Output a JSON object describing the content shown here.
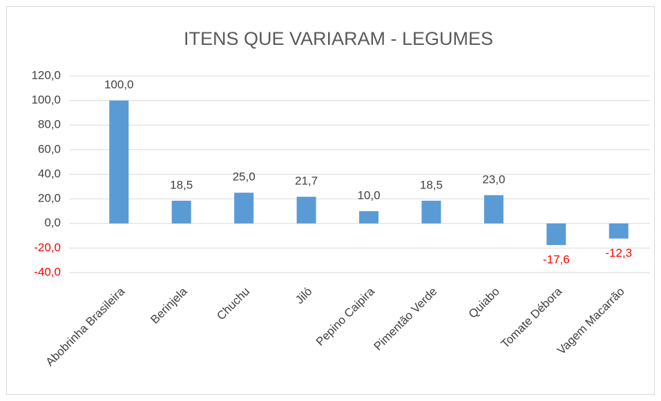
{
  "chart_data": {
    "type": "bar",
    "title": "ITENS QUE VARIARAM - LEGUMES",
    "categories": [
      "Abobrinha Brasileira",
      "Berinjela",
      "Chuchu",
      "Jiló",
      "Pepino Caipira",
      "Pimentão Verde",
      "Quiabo",
      "Tomate Débora",
      "Vagem Macarrão"
    ],
    "values": [
      100,
      18.5,
      25,
      21.7,
      10,
      18.5,
      23,
      -17.6,
      -12.3
    ],
    "value_labels": [
      "100,0",
      "18,5",
      "25,0",
      "21,7",
      "10,0",
      "18,5",
      "23,0",
      "-17,6",
      "-12,3"
    ],
    "color": "#5b9bd5",
    "negative_label_color": "#ff0000",
    "ylim": [
      -40,
      120
    ],
    "yticks": [
      {
        "value": -40,
        "label": "-40,0"
      },
      {
        "value": -20,
        "label": "-20,0"
      },
      {
        "value": 0,
        "label": "0,0"
      },
      {
        "value": 20,
        "label": "20,0"
      },
      {
        "value": 40,
        "label": "40,0"
      },
      {
        "value": 60,
        "label": "60,0"
      },
      {
        "value": 80,
        "label": "80,0"
      },
      {
        "value": 100,
        "label": "100,0"
      },
      {
        "value": 120,
        "label": "120,0"
      }
    ],
    "grid": true
  }
}
